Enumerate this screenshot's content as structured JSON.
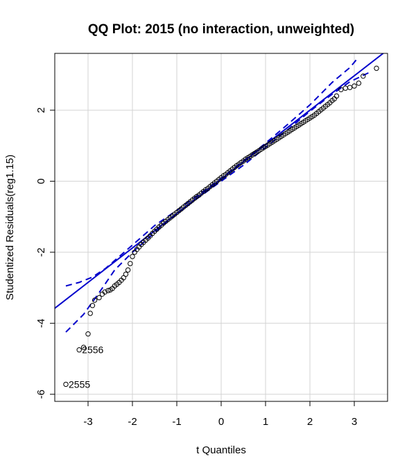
{
  "chart_data": {
    "type": "scatter",
    "title": "QQ Plot: 2015 (no interaction, unweighted)",
    "xlabel": "t Quantiles",
    "ylabel": "Studentized Residuals(reg1.15)",
    "xlim": [
      -3.75,
      3.75
    ],
    "ylim": [
      -6.2,
      3.6
    ],
    "xticks": [
      "-3",
      "-2",
      "-1",
      "0",
      "1",
      "2",
      "3"
    ],
    "yticks": [
      "-6",
      "-4",
      "-2",
      "0",
      "2"
    ],
    "grid": true,
    "colors": {
      "points": "#000000",
      "reference_line": "#0000cc",
      "envelope": "#0000cc",
      "grid": "#d3d3d3"
    },
    "reference_line": {
      "intercept": 0.06,
      "slope": 0.97
    },
    "envelope": {
      "upper": [
        [
          -3.5,
          -2.95
        ],
        [
          -3.2,
          -2.85
        ],
        [
          -2.9,
          -2.7
        ],
        [
          -2.6,
          -2.45
        ],
        [
          -2.0,
          -1.8
        ],
        [
          -1.5,
          -1.25
        ],
        [
          -1.0,
          -0.82
        ],
        [
          -0.5,
          -0.37
        ],
        [
          0.0,
          0.08
        ],
        [
          0.5,
          0.57
        ],
        [
          1.0,
          1.07
        ],
        [
          1.5,
          1.6
        ],
        [
          2.0,
          2.15
        ],
        [
          2.5,
          2.78
        ],
        [
          2.9,
          3.2
        ],
        [
          3.1,
          3.5
        ]
      ],
      "lower": [
        [
          -3.5,
          -4.25
        ],
        [
          -3.1,
          -3.75
        ],
        [
          -2.7,
          -3.05
        ],
        [
          -2.4,
          -2.5
        ],
        [
          -2.0,
          -2.0
        ],
        [
          -1.5,
          -1.45
        ],
        [
          -1.0,
          -0.92
        ],
        [
          -0.5,
          -0.45
        ],
        [
          0.0,
          0.0
        ],
        [
          0.5,
          0.45
        ],
        [
          1.0,
          0.95
        ],
        [
          1.5,
          1.45
        ],
        [
          2.0,
          1.97
        ],
        [
          2.5,
          2.45
        ],
        [
          2.9,
          2.8
        ],
        [
          3.4,
          3.1
        ]
      ]
    },
    "points": [
      [
        -3.5,
        -5.72
      ],
      [
        -3.2,
        -4.75
      ],
      [
        -3.1,
        -4.68
      ],
      [
        -3.0,
        -4.3
      ],
      [
        -2.95,
        -3.72
      ],
      [
        -2.9,
        -3.5
      ],
      [
        -2.85,
        -3.35
      ],
      [
        -2.75,
        -3.28
      ],
      [
        -2.68,
        -3.18
      ],
      [
        -2.62,
        -3.12
      ],
      [
        -2.55,
        -3.08
      ],
      [
        -2.5,
        -3.06
      ],
      [
        -2.45,
        -3.02
      ],
      [
        -2.4,
        -2.95
      ],
      [
        -2.35,
        -2.9
      ],
      [
        -2.3,
        -2.85
      ],
      [
        -2.25,
        -2.79
      ],
      [
        -2.2,
        -2.72
      ],
      [
        -2.15,
        -2.62
      ],
      [
        -2.1,
        -2.5
      ],
      [
        -2.05,
        -2.32
      ],
      [
        -2.0,
        -2.12
      ],
      [
        -1.95,
        -2.0
      ],
      [
        -1.9,
        -1.92
      ],
      [
        -1.85,
        -1.85
      ],
      [
        -1.8,
        -1.78
      ],
      [
        -1.75,
        -1.72
      ],
      [
        -1.7,
        -1.66
      ],
      [
        -1.65,
        -1.6
      ],
      [
        -1.6,
        -1.54
      ],
      [
        -1.55,
        -1.47
      ],
      [
        -1.5,
        -1.41
      ],
      [
        -1.45,
        -1.35
      ],
      [
        -1.4,
        -1.29
      ],
      [
        -1.35,
        -1.24
      ],
      [
        -1.3,
        -1.18
      ],
      [
        -1.25,
        -1.13
      ],
      [
        -1.2,
        -1.08
      ],
      [
        -1.15,
        -1.03
      ],
      [
        -1.1,
        -0.98
      ],
      [
        -1.05,
        -0.93
      ],
      [
        -1.0,
        -0.88
      ],
      [
        -0.95,
        -0.83
      ],
      [
        -0.9,
        -0.78
      ],
      [
        -0.85,
        -0.73
      ],
      [
        -0.8,
        -0.68
      ],
      [
        -0.75,
        -0.63
      ],
      [
        -0.7,
        -0.58
      ],
      [
        -0.65,
        -0.53
      ],
      [
        -0.6,
        -0.48
      ],
      [
        -0.55,
        -0.43
      ],
      [
        -0.5,
        -0.39
      ],
      [
        -0.45,
        -0.34
      ],
      [
        -0.4,
        -0.29
      ],
      [
        -0.35,
        -0.24
      ],
      [
        -0.3,
        -0.2
      ],
      [
        -0.25,
        -0.15
      ],
      [
        -0.2,
        -0.1
      ],
      [
        -0.15,
        -0.05
      ],
      [
        -0.1,
        0.0
      ],
      [
        -0.05,
        0.05
      ],
      [
        0.0,
        0.1
      ],
      [
        0.05,
        0.15
      ],
      [
        0.1,
        0.19
      ],
      [
        0.15,
        0.24
      ],
      [
        0.2,
        0.29
      ],
      [
        0.25,
        0.34
      ],
      [
        0.3,
        0.39
      ],
      [
        0.35,
        0.44
      ],
      [
        0.4,
        0.48
      ],
      [
        0.45,
        0.53
      ],
      [
        0.5,
        0.57
      ],
      [
        0.55,
        0.62
      ],
      [
        0.6,
        0.66
      ],
      [
        0.65,
        0.7
      ],
      [
        0.7,
        0.74
      ],
      [
        0.75,
        0.78
      ],
      [
        0.8,
        0.82
      ],
      [
        0.85,
        0.86
      ],
      [
        0.9,
        0.9
      ],
      [
        0.95,
        0.94
      ],
      [
        1.0,
        0.98
      ],
      [
        1.05,
        1.02
      ],
      [
        1.1,
        1.06
      ],
      [
        1.15,
        1.1
      ],
      [
        1.2,
        1.14
      ],
      [
        1.25,
        1.18
      ],
      [
        1.3,
        1.22
      ],
      [
        1.35,
        1.26
      ],
      [
        1.4,
        1.3
      ],
      [
        1.45,
        1.34
      ],
      [
        1.5,
        1.38
      ],
      [
        1.55,
        1.42
      ],
      [
        1.6,
        1.46
      ],
      [
        1.65,
        1.5
      ],
      [
        1.7,
        1.54
      ],
      [
        1.75,
        1.58
      ],
      [
        1.8,
        1.62
      ],
      [
        1.85,
        1.66
      ],
      [
        1.9,
        1.7
      ],
      [
        1.95,
        1.74
      ],
      [
        2.0,
        1.78
      ],
      [
        2.05,
        1.82
      ],
      [
        2.1,
        1.86
      ],
      [
        2.15,
        1.91
      ],
      [
        2.2,
        1.96
      ],
      [
        2.25,
        2.01
      ],
      [
        2.3,
        2.06
      ],
      [
        2.35,
        2.11
      ],
      [
        2.4,
        2.16
      ],
      [
        2.45,
        2.21
      ],
      [
        2.5,
        2.27
      ],
      [
        2.55,
        2.32
      ],
      [
        2.6,
        2.4
      ],
      [
        2.7,
        2.58
      ],
      [
        2.8,
        2.62
      ],
      [
        2.9,
        2.64
      ],
      [
        3.0,
        2.68
      ],
      [
        3.1,
        2.76
      ],
      [
        3.2,
        2.96
      ],
      [
        3.5,
        3.18
      ]
    ],
    "point_labels": [
      {
        "text": "2556",
        "x": -3.2,
        "y": -4.75
      },
      {
        "text": "2555",
        "x": -3.5,
        "y": -5.72
      }
    ]
  }
}
